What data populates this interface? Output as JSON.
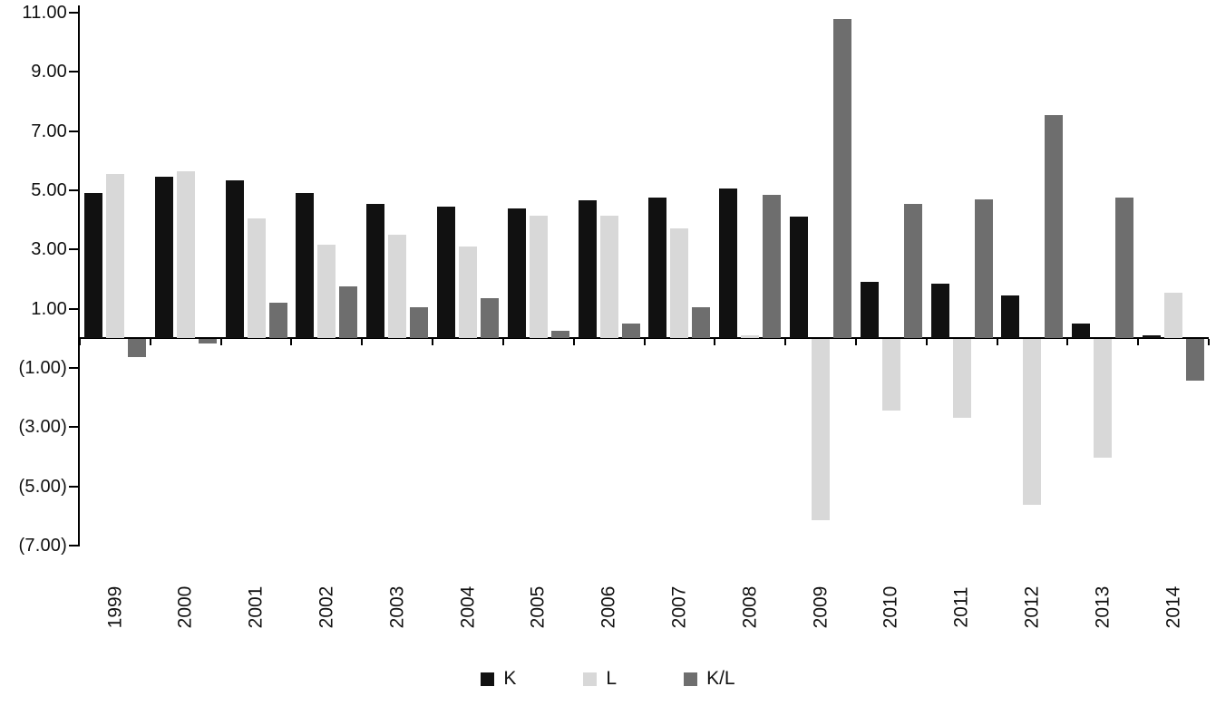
{
  "chart_data": {
    "type": "bar",
    "title": "",
    "xlabel": "",
    "ylabel": "",
    "categories": [
      "1999",
      "2000",
      "2001",
      "2002",
      "2003",
      "2004",
      "2005",
      "2006",
      "2007",
      "2008",
      "2009",
      "2010",
      "2011",
      "2012",
      "2013",
      "2014"
    ],
    "series": [
      {
        "name": "K",
        "color": "#111111",
        "values": [
          4.9,
          5.45,
          5.35,
          4.9,
          4.55,
          4.45,
          4.4,
          4.65,
          4.75,
          5.05,
          4.1,
          1.9,
          1.85,
          1.45,
          0.5,
          0.1
        ]
      },
      {
        "name": "L",
        "color": "#d8d8d8",
        "values": [
          5.55,
          5.65,
          4.05,
          3.15,
          3.5,
          3.1,
          4.15,
          4.15,
          3.7,
          0.1,
          -6.1,
          -2.4,
          -2.65,
          -5.6,
          -4.0,
          1.55
        ]
      },
      {
        "name": "K/L",
        "color": "#6e6e6e",
        "values": [
          -0.6,
          -0.15,
          1.2,
          1.75,
          1.05,
          1.35,
          0.25,
          0.5,
          1.05,
          4.85,
          10.8,
          4.55,
          4.7,
          7.55,
          4.75,
          -1.4
        ]
      }
    ],
    "ylim": [
      -7,
      11
    ],
    "yticks": [
      {
        "value": 11,
        "label": "11.00"
      },
      {
        "value": 9,
        "label": "9.00"
      },
      {
        "value": 7,
        "label": "7.00"
      },
      {
        "value": 5,
        "label": "5.00"
      },
      {
        "value": 3,
        "label": "3.00"
      },
      {
        "value": 1,
        "label": "1.00"
      },
      {
        "value": -1,
        "label": "(1.00)"
      },
      {
        "value": -3,
        "label": "(3.00)"
      },
      {
        "value": -5,
        "label": "(5.00)"
      },
      {
        "value": -7,
        "label": "(7.00)"
      }
    ],
    "grid": false,
    "legend_position": "bottom",
    "negative_label_format": "parentheses"
  }
}
